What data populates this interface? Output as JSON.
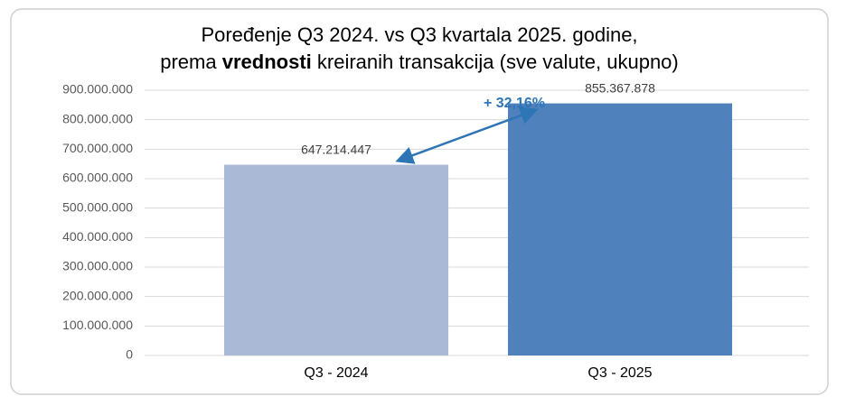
{
  "chart_data": {
    "type": "bar",
    "title": [
      "Poređenje Q3 2024. vs Q3 kvartala 2025. godine,",
      [
        "prema ",
        "vrednosti",
        " kreiranih transakcija (sve valute, ukupno)"
      ]
    ],
    "categories": [
      "Q3 - 2024",
      "Q3 - 2025"
    ],
    "values": [
      647214447,
      855367878
    ],
    "value_labels": [
      "647.214.447",
      "855.367.878"
    ],
    "colors": [
      "#a9b9d6",
      "#4f81bd"
    ],
    "annotation": "+ 32,16%",
    "annotation_color": "#2e75b6",
    "ylim": [
      0,
      900000000
    ],
    "yticks": [
      0,
      {
        "value": 100000000,
        "label": "100.000.000"
      },
      {
        "value": 200000000,
        "label": "200.000.000"
      },
      {
        "value": 300000000,
        "label": "300.000.000"
      },
      {
        "value": 400000000,
        "label": "400.000.000"
      },
      {
        "value": 500000000,
        "label": "500.000.000"
      },
      {
        "value": 600000000,
        "label": "600.000.000"
      },
      {
        "value": 700000000,
        "label": "700.000.000"
      },
      {
        "value": 800000000,
        "label": "800.000.000"
      },
      {
        "value": 900000000,
        "label": "900.000.000"
      }
    ],
    "grid": true
  }
}
